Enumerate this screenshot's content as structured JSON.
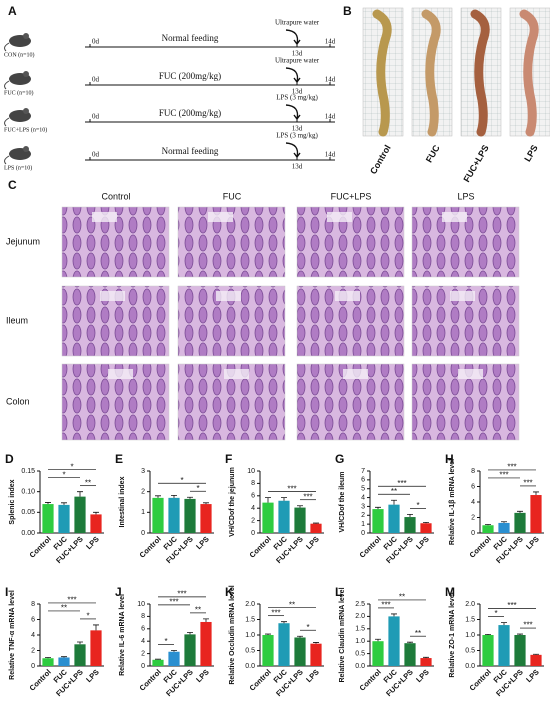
{
  "panel_labels": [
    "A",
    "B",
    "C"
  ],
  "design": {
    "rows": [
      {
        "group": "CON (n=10)",
        "treatment": "Normal feeding",
        "challenge": "Ultrapure water"
      },
      {
        "group": "FUC (n=10)",
        "treatment": "FUC (200mg/kg)",
        "challenge": "Ultrapure water"
      },
      {
        "group": "FUC+LPS (n=10)",
        "treatment": "FUC (200mg/kg)",
        "challenge": "LPS (3 mg/kg)"
      },
      {
        "group": "LPS (n=10)",
        "treatment": "Normal feeding",
        "challenge": "LPS (3 mg/kg)"
      }
    ],
    "days": [
      "0d",
      "13d",
      "14d"
    ]
  },
  "photos": {
    "labels": [
      "Control",
      "FUC",
      "FUC+LPS",
      "LPS"
    ]
  },
  "histology": {
    "columns": [
      "Control",
      "FUC",
      "FUC+LPS",
      "LPS"
    ],
    "rows": [
      "Jejunum",
      "Ileum",
      "Colon"
    ]
  },
  "chart_data": [
    {
      "type": "bar",
      "label": "D",
      "y_label": "Splenic index",
      "categories": [
        "Control",
        "FUC",
        "FUC+LPS",
        "LPS"
      ],
      "values": [
        0.07,
        0.068,
        0.088,
        0.045
      ],
      "errors": [
        0.004,
        0.005,
        0.012,
        0.005
      ],
      "colors": [
        "#2ecc40",
        "#1f9bb5",
        "#1e7b3a",
        "#e8251f"
      ],
      "ylim": [
        0,
        0.15
      ],
      "yticks": [
        {
          "value": 0,
          "label": "0.00"
        },
        0.05,
        {
          "value": 0.1,
          "label": "0.10"
        },
        0.15
      ],
      "significance": [
        {
          "from": "FUC+LPS",
          "to": "LPS",
          "label": "**"
        },
        {
          "from": "Control",
          "to": "FUC+LPS",
          "label": "*"
        },
        {
          "from": "Control",
          "to": "LPS",
          "label": "*"
        }
      ]
    },
    {
      "type": "bar",
      "label": "E",
      "y_label": "Intestinal index",
      "categories": [
        "Control",
        "FUC",
        "FUC+LPS",
        "LPS"
      ],
      "values": [
        1.7,
        1.7,
        1.65,
        1.4
      ],
      "errors": [
        0.1,
        0.12,
        0.08,
        0.06
      ],
      "colors": [
        "#2ecc40",
        "#1f9bb5",
        "#1e7b3a",
        "#e8251f"
      ],
      "ylim": [
        0,
        3
      ],
      "yticks": [
        0,
        1,
        2,
        3
      ],
      "significance": [
        {
          "from": "FUC+LPS",
          "to": "LPS",
          "label": "*"
        },
        {
          "from": "Control",
          "to": "LPS",
          "label": "*"
        }
      ]
    },
    {
      "type": "bar",
      "label": "F",
      "y_label": "VH/CDof the jejunum",
      "categories": [
        "Control",
        "FUC",
        "FUC+LPS",
        "LPS"
      ],
      "values": [
        4.9,
        5.2,
        4.1,
        1.5
      ],
      "errors": [
        0.8,
        0.5,
        0.3,
        0.1
      ],
      "colors": [
        "#2ecc40",
        "#1f9bb5",
        "#1e7b3a",
        "#e8251f"
      ],
      "ylim": [
        0,
        10
      ],
      "yticks": [
        0,
        2,
        4,
        6,
        8,
        10
      ],
      "significance": [
        {
          "from": "FUC+LPS",
          "to": "LPS",
          "label": "***"
        },
        {
          "from": "Control",
          "to": "LPS",
          "label": "***"
        }
      ]
    },
    {
      "type": "bar",
      "label": "G",
      "y_label": "VH/CDof the ileum",
      "categories": [
        "Control",
        "FUC",
        "FUC+LPS",
        "LPS"
      ],
      "values": [
        2.7,
        3.2,
        1.8,
        1.1
      ],
      "errors": [
        0.2,
        0.5,
        0.3,
        0.1
      ],
      "colors": [
        "#2ecc40",
        "#1f9bb5",
        "#1e7b3a",
        "#e8251f"
      ],
      "ylim": [
        0,
        7
      ],
      "yticks": [
        0,
        1,
        2,
        3,
        4,
        5,
        6,
        7
      ],
      "significance": [
        {
          "from": "FUC+LPS",
          "to": "LPS",
          "label": "*"
        },
        {
          "from": "Control",
          "to": "FUC+LPS",
          "label": "**"
        },
        {
          "from": "Control",
          "to": "LPS",
          "label": "***"
        }
      ]
    },
    {
      "type": "bar",
      "label": "H",
      "y_label": "Relative IL-1β mRNA level",
      "categories": [
        "Control",
        "FUC",
        "FUC+LPS",
        "LPS"
      ],
      "values": [
        1,
        1.3,
        2.6,
        4.9
      ],
      "errors": [
        0.1,
        0.15,
        0.2,
        0.4
      ],
      "colors": [
        "#2ecc40",
        "#2a8fd0",
        "#1e7b3a",
        "#e8251f"
      ],
      "ylim": [
        0,
        8
      ],
      "yticks": [
        0,
        2,
        4,
        6,
        8
      ],
      "significance": [
        {
          "from": "FUC+LPS",
          "to": "LPS",
          "label": "***"
        },
        {
          "from": "Control",
          "to": "FUC+LPS",
          "label": "***"
        },
        {
          "from": "Control",
          "to": "LPS",
          "label": "***"
        }
      ]
    },
    {
      "type": "bar",
      "label": "I",
      "y_label": "Relative TNF-α mRNA level",
      "categories": [
        "Control",
        "FUC",
        "FUC+LPS",
        "LPS"
      ],
      "values": [
        1,
        1.1,
        2.8,
        4.6
      ],
      "errors": [
        0.1,
        0.1,
        0.3,
        0.7
      ],
      "colors": [
        "#2ecc40",
        "#2a8fd0",
        "#1e7b3a",
        "#e8251f"
      ],
      "ylim": [
        0,
        8
      ],
      "yticks": [
        0,
        2,
        4,
        6,
        8
      ],
      "significance": [
        {
          "from": "FUC+LPS",
          "to": "LPS",
          "label": "*"
        },
        {
          "from": "Control",
          "to": "FUC+LPS",
          "label": "**"
        },
        {
          "from": "Control",
          "to": "LPS",
          "label": "***"
        }
      ]
    },
    {
      "type": "bar",
      "label": "J",
      "y_label": "Relative IL-6 mRNA level",
      "categories": [
        "Control",
        "FUC",
        "FUC+LPS",
        "LPS"
      ],
      "values": [
        1,
        2.3,
        5.1,
        7.1
      ],
      "errors": [
        0.1,
        0.2,
        0.3,
        0.5
      ],
      "colors": [
        "#2ecc40",
        "#2a8fd0",
        "#1e7b3a",
        "#e8251f"
      ],
      "ylim": [
        0,
        10
      ],
      "yticks": [
        0,
        2,
        4,
        6,
        8,
        10
      ],
      "significance": [
        {
          "from": "Control",
          "to": "FUC",
          "label": "*"
        },
        {
          "from": "FUC+LPS",
          "to": "LPS",
          "label": "**"
        },
        {
          "from": "Control",
          "to": "FUC+LPS",
          "label": "***"
        },
        {
          "from": "Control",
          "to": "LPS",
          "label": "***"
        }
      ]
    },
    {
      "type": "bar",
      "label": "K",
      "y_label": "Relative Occludin mRNA level",
      "categories": [
        "Control",
        "FUC",
        "FUC+LPS",
        "LPS"
      ],
      "values": [
        1.0,
        1.38,
        0.92,
        0.72
      ],
      "errors": [
        0.03,
        0.05,
        0.04,
        0.04
      ],
      "colors": [
        "#2ecc40",
        "#1f9bb5",
        "#1e7b3a",
        "#e8251f"
      ],
      "ylim": [
        0,
        2
      ],
      "yticks": [
        {
          "value": 0,
          "label": "0.0"
        },
        0.5,
        {
          "value": 1,
          "label": "1.0"
        },
        1.5,
        {
          "value": 2,
          "label": "2.0"
        }
      ],
      "significance": [
        {
          "from": "Control",
          "to": "FUC",
          "label": "***"
        },
        {
          "from": "FUC+LPS",
          "to": "LPS",
          "label": "*"
        },
        {
          "from": "Control",
          "to": "LPS",
          "label": "**"
        }
      ]
    },
    {
      "type": "bar",
      "label": "L",
      "y_label": "Relative Claudin mRNA level",
      "categories": [
        "Control",
        "FUC",
        "FUC+LPS",
        "LPS"
      ],
      "values": [
        1.0,
        2.0,
        0.92,
        0.32
      ],
      "errors": [
        0.08,
        0.1,
        0.04,
        0.03
      ],
      "colors": [
        "#2ecc40",
        "#1f9bb5",
        "#1e7b3a",
        "#e8251f"
      ],
      "ylim": [
        0,
        2.5
      ],
      "yticks": [
        {
          "value": 0,
          "label": "0.0"
        },
        0.5,
        {
          "value": 1,
          "label": "1.0"
        },
        1.5,
        {
          "value": 2,
          "label": "2.0"
        },
        2.5
      ],
      "significance": [
        {
          "from": "Control",
          "to": "FUC",
          "label": "***"
        },
        {
          "from": "FUC+LPS",
          "to": "LPS",
          "label": "**"
        },
        {
          "from": "Control",
          "to": "LPS",
          "label": "**"
        }
      ]
    },
    {
      "type": "bar",
      "label": "M",
      "y_label": "Relative ZO-1 mRNA level",
      "categories": [
        "Control",
        "FUC",
        "FUC+LPS",
        "LPS"
      ],
      "values": [
        1.0,
        1.32,
        1.0,
        0.36
      ],
      "errors": [
        0.02,
        0.08,
        0.03,
        0.02
      ],
      "colors": [
        "#2ecc40",
        "#1f9bb5",
        "#1e7b3a",
        "#e8251f"
      ],
      "ylim": [
        0,
        2
      ],
      "yticks": [
        {
          "value": 0,
          "label": "0.0"
        },
        0.5,
        {
          "value": 1,
          "label": "1.0"
        },
        1.5,
        {
          "value": 2,
          "label": "2.0"
        }
      ],
      "significance": [
        {
          "from": "Control",
          "to": "FUC",
          "label": "*"
        },
        {
          "from": "FUC+LPS",
          "to": "LPS",
          "label": "***"
        },
        {
          "from": "Control",
          "to": "LPS",
          "label": "***"
        }
      ]
    }
  ]
}
